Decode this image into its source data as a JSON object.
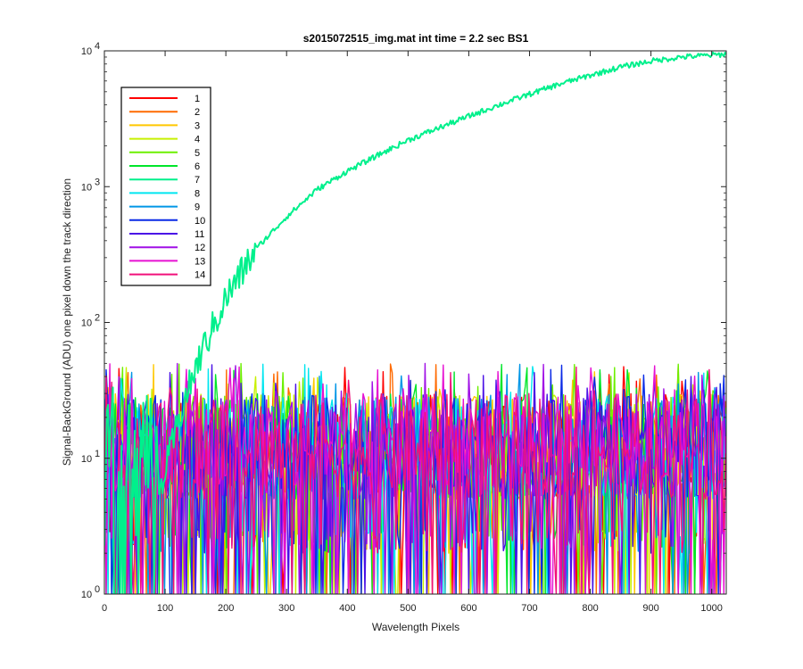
{
  "chart_data": {
    "type": "line",
    "title": "s2015072515_img.mat int time = 2.2 sec   BS1",
    "xlabel": "Wavelength Pixels",
    "ylabel": "Signal-BackGround (ADU) one pixel down the track direction",
    "xlim": [
      0,
      1024
    ],
    "ylim": [
      1,
      10000
    ],
    "yscale": "log",
    "grid": false,
    "legend_position": "top-left",
    "x_ticks": [
      "0",
      "100",
      "200",
      "300",
      "400",
      "500",
      "600",
      "700",
      "800",
      "900",
      "1000"
    ],
    "y_ticks": [
      {
        "base": "10",
        "exp": "0"
      },
      {
        "base": "10",
        "exp": "1"
      },
      {
        "base": "10",
        "exp": "2"
      },
      {
        "base": "10",
        "exp": "3"
      },
      {
        "base": "10",
        "exp": "4"
      }
    ],
    "series": [
      {
        "name": "1",
        "color": "#ff0000",
        "kind": "noise"
      },
      {
        "name": "2",
        "color": "#ff6a00",
        "kind": "noise"
      },
      {
        "name": "3",
        "color": "#ffc800",
        "kind": "noise"
      },
      {
        "name": "4",
        "color": "#c8f000",
        "kind": "noise"
      },
      {
        "name": "5",
        "color": "#6cf000",
        "kind": "noise"
      },
      {
        "name": "6",
        "color": "#00e62a",
        "kind": "noise"
      },
      {
        "name": "7",
        "color": "#00f08c",
        "kind": "signal",
        "points": [
          [
            0,
            1
          ],
          [
            60,
            1.5
          ],
          [
            100,
            8
          ],
          [
            130,
            25
          ],
          [
            160,
            60
          ],
          [
            200,
            150
          ],
          [
            250,
            350
          ],
          [
            300,
            600
          ],
          [
            350,
            950
          ],
          [
            400,
            1300
          ],
          [
            450,
            1700
          ],
          [
            500,
            2200
          ],
          [
            550,
            2700
          ],
          [
            600,
            3300
          ],
          [
            650,
            4000
          ],
          [
            700,
            4800
          ],
          [
            750,
            5700
          ],
          [
            800,
            6600
          ],
          [
            850,
            7600
          ],
          [
            900,
            8400
          ],
          [
            950,
            9000
          ],
          [
            1000,
            9300
          ],
          [
            1024,
            9450
          ]
        ]
      },
      {
        "name": "8",
        "color": "#00e6f0",
        "kind": "noise"
      },
      {
        "name": "9",
        "color": "#0096e6",
        "kind": "noise"
      },
      {
        "name": "10",
        "color": "#0a2ae6",
        "kind": "noise"
      },
      {
        "name": "11",
        "color": "#4a10e6",
        "kind": "noise"
      },
      {
        "name": "12",
        "color": "#a010e6",
        "kind": "noise"
      },
      {
        "name": "13",
        "color": "#e610d2",
        "kind": "noise"
      },
      {
        "name": "14",
        "color": "#f0107a",
        "kind": "noise"
      }
    ],
    "noise_level": {
      "typical": [
        5,
        30
      ],
      "floor": 1,
      "peaks": 50
    }
  }
}
